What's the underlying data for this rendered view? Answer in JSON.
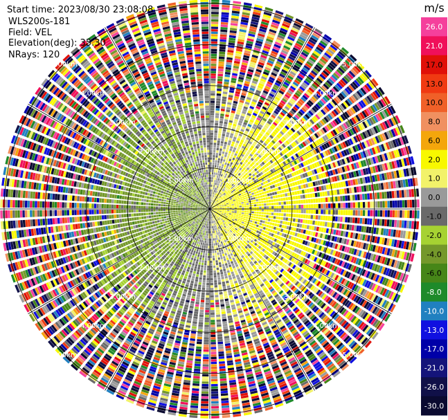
{
  "header": {
    "start_time": "Start time: 2023/08/30 23:08:08",
    "instrument": "WLS200s-181",
    "field": "Field: VEL",
    "elevation": "Elevation(deg): 35.30",
    "nrays": "NRays: 120"
  },
  "chart_data": {
    "type": "heatmap",
    "projection": "polar (PPI)",
    "field": "VEL",
    "units": "m/s",
    "nrays": 120,
    "elevation_deg": 35.3,
    "range_rings_km": [
      1,
      2,
      3,
      4,
      5
    ],
    "range_ring_labels": [
      "1.00km",
      "2.00km",
      "3.00km",
      "4.00km",
      "5.00km"
    ],
    "max_range_km": 5.1,
    "colorbar": {
      "title": "m/s",
      "ticks": [
        "26.0",
        "21.0",
        "17.0",
        "13.0",
        "10.0",
        "8.0",
        "6.0",
        "2.0",
        "1.0",
        "0.0",
        "-1.0",
        "-2.0",
        "-4.0",
        "-6.0",
        "-8.0",
        "-10.0",
        "-13.0",
        "-17.0",
        "-21.0",
        "-26.0",
        "-30.0"
      ],
      "bins": [
        {
          "min": 26,
          "color": "#f5409c"
        },
        {
          "min": 21,
          "color": "#f0105a"
        },
        {
          "min": 17,
          "color": "#e01008"
        },
        {
          "min": 13,
          "color": "#f03a12"
        },
        {
          "min": 10,
          "color": "#f06028"
        },
        {
          "min": 8,
          "color": "#f09060"
        },
        {
          "min": 6,
          "color": "#f4a60c"
        },
        {
          "min": 2,
          "color": "#f8f800"
        },
        {
          "min": 1,
          "color": "#f2f26a"
        },
        {
          "min": 0,
          "color": "#9a9a9a"
        },
        {
          "min": -1,
          "color": "#6a6a6a"
        },
        {
          "min": -2,
          "color": "#a6d232"
        },
        {
          "min": -4,
          "color": "#74982a"
        },
        {
          "min": -6,
          "color": "#468618"
        },
        {
          "min": -8,
          "color": "#1e8a2a"
        },
        {
          "min": -10,
          "color": "#2080c0"
        },
        {
          "min": -13,
          "color": "#1010e0"
        },
        {
          "min": -17,
          "color": "#0000a8"
        },
        {
          "min": -21,
          "color": "#14147a"
        },
        {
          "min": -26,
          "color": "#101048"
        },
        {
          "min": -30,
          "color": "#0a0a30"
        }
      ]
    },
    "regions": [
      {
        "range_km": [
          0,
          3.0
        ],
        "azimuth_deg": [
          0,
          160
        ],
        "dominant_velocity_ms": 2.0,
        "description_class": "positive"
      },
      {
        "range_km": [
          0,
          3.0
        ],
        "azimuth_deg": [
          180,
          360
        ],
        "dominant_velocity_ms": -3.0,
        "description_class": "negative"
      },
      {
        "range_km": [
          3.0,
          5.1
        ],
        "azimuth_deg": [
          0,
          360
        ],
        "dominant_velocity_ms": null,
        "description_class": "noise"
      }
    ]
  }
}
